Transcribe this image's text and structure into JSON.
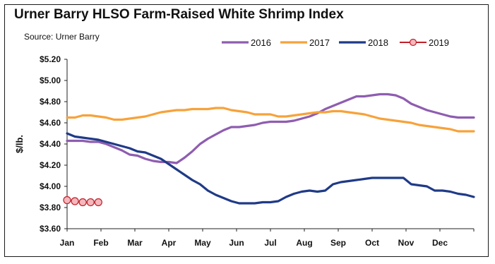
{
  "chart_data": {
    "type": "line",
    "title": "Urner Barry HLSO Farm-Raised White Shrimp Index",
    "subtitle": "Source: Urner Barry",
    "xlabel": "",
    "ylabel": "$/lb.",
    "categories": [
      "Jan",
      "Feb",
      "Mar",
      "Apr",
      "May",
      "Jun",
      "Jul",
      "Aug",
      "Sep",
      "Oct",
      "Nov",
      "Dec"
    ],
    "x_range": [
      0,
      52
    ],
    "ylim": [
      3.6,
      5.2
    ],
    "yticks": [
      "$3.60",
      "$3.80",
      "$4.00",
      "$4.20",
      "$4.40",
      "$4.60",
      "$4.80",
      "$5.00",
      "$5.20"
    ],
    "legend_position": "top-right",
    "grid": false,
    "series": [
      {
        "name": "2016",
        "color": "#8e5db0",
        "marker": "none",
        "x": [
          0,
          1,
          2,
          3,
          4,
          5,
          6,
          7,
          8,
          9,
          10,
          11,
          12,
          13,
          14,
          15,
          16,
          17,
          18,
          19,
          20,
          21,
          22,
          23,
          24,
          25,
          26,
          27,
          28,
          29,
          30,
          31,
          32,
          33,
          34,
          35,
          36,
          37,
          38,
          39,
          40,
          41,
          42,
          43,
          44,
          45,
          46,
          47,
          48,
          49,
          50,
          51,
          52
        ],
        "values": [
          4.43,
          4.43,
          4.43,
          4.42,
          4.42,
          4.4,
          4.37,
          4.34,
          4.3,
          4.29,
          4.26,
          4.24,
          4.23,
          4.23,
          4.22,
          4.27,
          4.33,
          4.4,
          4.45,
          4.49,
          4.53,
          4.56,
          4.56,
          4.57,
          4.58,
          4.6,
          4.61,
          4.61,
          4.61,
          4.62,
          4.64,
          4.66,
          4.69,
          4.73,
          4.76,
          4.79,
          4.82,
          4.85,
          4.85,
          4.86,
          4.87,
          4.87,
          4.86,
          4.83,
          4.78,
          4.75,
          4.72,
          4.7,
          4.68,
          4.66,
          4.65,
          4.65,
          4.65
        ]
      },
      {
        "name": "2017",
        "color": "#f7a23a",
        "marker": "none",
        "x": [
          0,
          1,
          2,
          3,
          4,
          5,
          6,
          7,
          8,
          9,
          10,
          11,
          12,
          13,
          14,
          15,
          16,
          17,
          18,
          19,
          20,
          21,
          22,
          23,
          24,
          25,
          26,
          27,
          28,
          29,
          30,
          31,
          32,
          33,
          34,
          35,
          36,
          37,
          38,
          39,
          40,
          41,
          42,
          43,
          44,
          45,
          46,
          47,
          48,
          49,
          50,
          51,
          52
        ],
        "values": [
          4.65,
          4.65,
          4.67,
          4.67,
          4.66,
          4.65,
          4.63,
          4.63,
          4.64,
          4.65,
          4.66,
          4.68,
          4.7,
          4.71,
          4.72,
          4.72,
          4.73,
          4.73,
          4.73,
          4.74,
          4.74,
          4.72,
          4.71,
          4.7,
          4.68,
          4.68,
          4.68,
          4.66,
          4.66,
          4.67,
          4.68,
          4.69,
          4.7,
          4.7,
          4.71,
          4.71,
          4.7,
          4.69,
          4.68,
          4.66,
          4.64,
          4.63,
          4.62,
          4.61,
          4.6,
          4.58,
          4.57,
          4.56,
          4.55,
          4.54,
          4.52,
          4.52,
          4.52
        ]
      },
      {
        "name": "2018",
        "color": "#1f3a87",
        "marker": "none",
        "x": [
          0,
          1,
          2,
          3,
          4,
          5,
          6,
          7,
          8,
          9,
          10,
          11,
          12,
          13,
          14,
          15,
          16,
          17,
          18,
          19,
          20,
          21,
          22,
          23,
          24,
          25,
          26,
          27,
          28,
          29,
          30,
          31,
          32,
          33,
          34,
          35,
          36,
          37,
          38,
          39,
          40,
          41,
          42,
          43,
          44,
          45,
          46,
          47,
          48,
          49,
          50,
          51,
          52
        ],
        "values": [
          4.5,
          4.47,
          4.46,
          4.45,
          4.44,
          4.42,
          4.4,
          4.38,
          4.36,
          4.33,
          4.32,
          4.29,
          4.26,
          4.21,
          4.16,
          4.11,
          4.06,
          4.02,
          3.96,
          3.92,
          3.89,
          3.86,
          3.84,
          3.84,
          3.84,
          3.85,
          3.85,
          3.86,
          3.9,
          3.93,
          3.95,
          3.96,
          3.95,
          3.96,
          4.02,
          4.04,
          4.05,
          4.06,
          4.07,
          4.08,
          4.08,
          4.08,
          4.08,
          4.08,
          4.02,
          4.01,
          4.0,
          3.96,
          3.96,
          3.95,
          3.93,
          3.92,
          3.9
        ]
      },
      {
        "name": "2019",
        "color": "#c0202a",
        "marker_fill": "#f4b8bd",
        "marker": "circle",
        "x": [
          0,
          1,
          2,
          3,
          4
        ],
        "values": [
          3.87,
          3.86,
          3.85,
          3.85,
          3.85
        ]
      }
    ]
  }
}
